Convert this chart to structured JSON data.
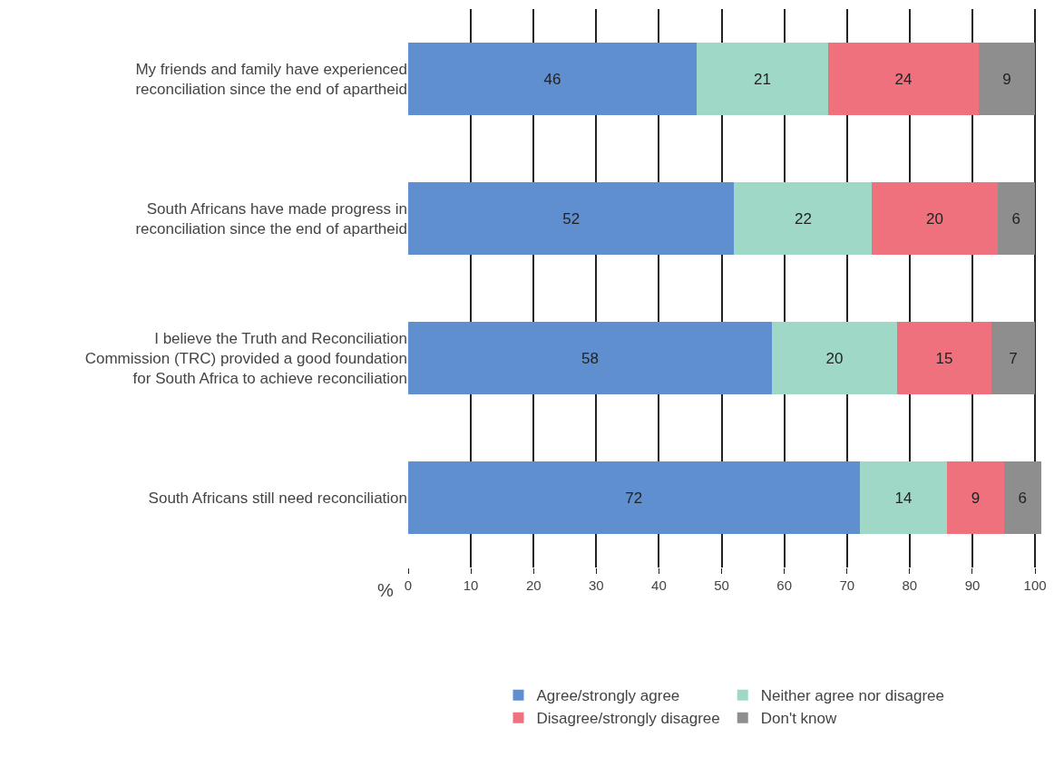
{
  "chart_data": {
    "type": "bar",
    "orientation": "horizontal",
    "stacked": true,
    "xlabel": "%",
    "categories": [
      "My friends and family have experienced reconciliation since the end of apartheid",
      "South Africans have made progress in reconciliation since the end of apartheid",
      "I believe the Truth and Reconciliation Commission (TRC) provided a good foundation for South Africa to achieve reconciliation",
      "South Africans still need reconciliation"
    ],
    "series": [
      {
        "name": "Agree/strongly agree",
        "color": "#5f8fcf",
        "values": [
          46,
          52,
          58,
          72
        ]
      },
      {
        "name": "Neither agree nor disagree",
        "color": "#a0d8c8",
        "values": [
          21,
          22,
          20,
          14
        ]
      },
      {
        "name": "Disagree/strongly disagree",
        "color": "#ee717d",
        "values": [
          24,
          20,
          15,
          9
        ]
      },
      {
        "name": "Don't know",
        "color": "#8e8e8e",
        "values": [
          9,
          6,
          7,
          6
        ]
      }
    ],
    "xlim": [
      0,
      101
    ],
    "xticks": [
      0,
      10,
      20,
      30,
      40,
      50,
      60,
      70,
      80,
      90,
      100
    ],
    "grid": "x",
    "data_labels": true,
    "legend": "bottom"
  }
}
